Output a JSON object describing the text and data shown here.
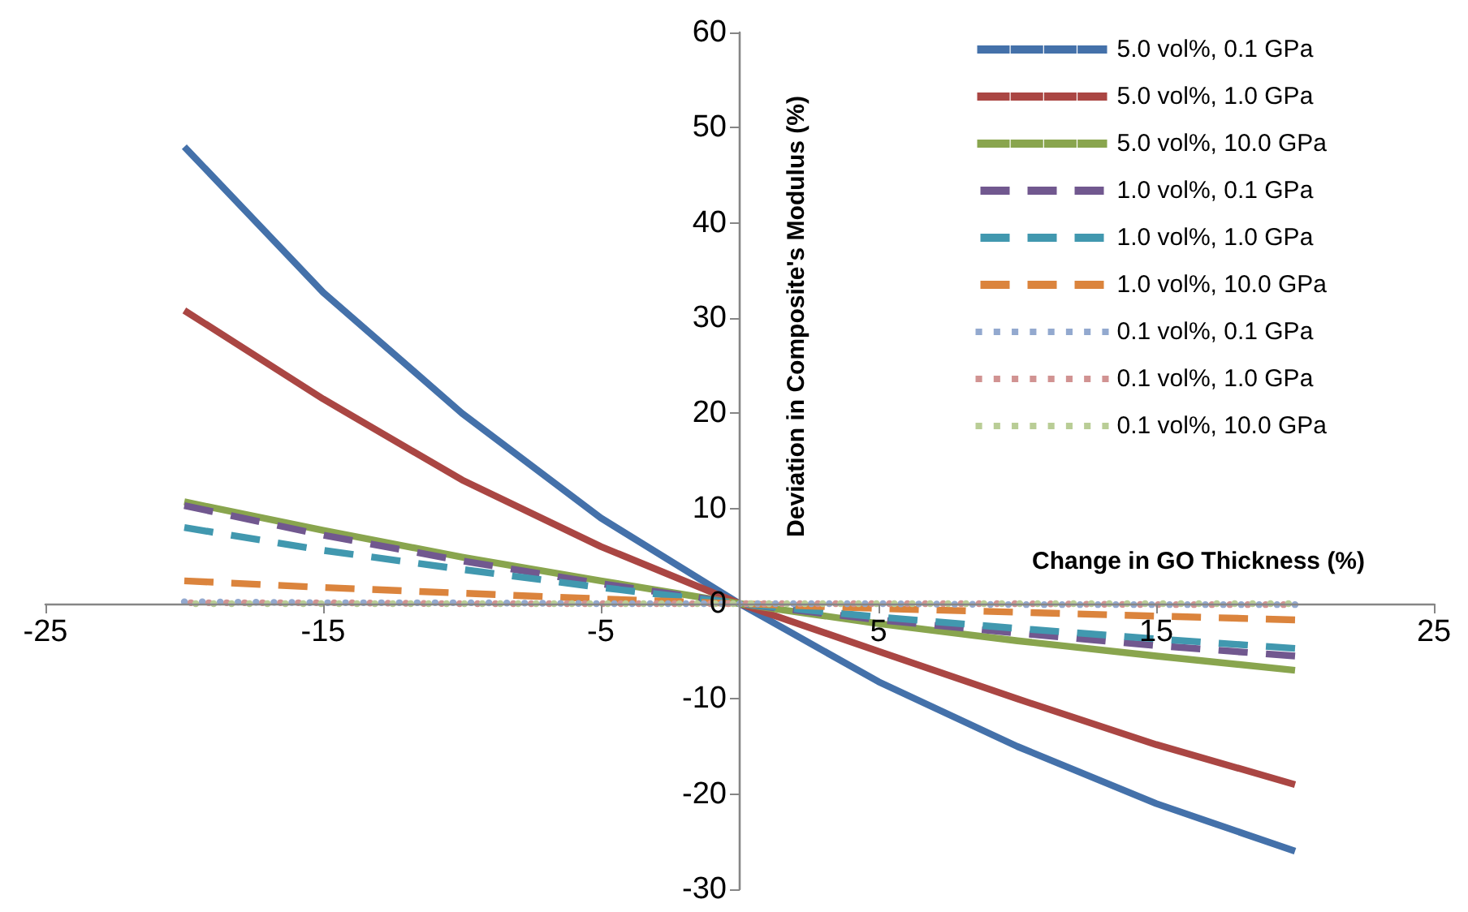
{
  "chart_data": {
    "type": "line",
    "xlabel": "Change in GO Thickness (%)",
    "ylabel": "Deviation in Composite's Modulus (%)",
    "x": [
      -20,
      -15,
      -10,
      -5,
      0,
      5,
      10,
      15,
      20
    ],
    "xlim": [
      -25,
      25
    ],
    "xticks": [
      -25,
      -15,
      -5,
      5,
      15,
      25
    ],
    "ylim": [
      -30,
      60
    ],
    "yticks": [
      -30,
      -20,
      -10,
      0,
      10,
      20,
      30,
      40,
      50,
      60
    ],
    "legend": "top right",
    "marker": "none",
    "series": [
      {
        "name": "5.0 vol%, 0.1 GPa",
        "color": "#4471aa",
        "line_style": "solid",
        "values": [
          48,
          32.7,
          20,
          9,
          0,
          -8.2,
          -15,
          -21,
          -26
        ]
      },
      {
        "name": "5.0 vol%, 1.0 GPa",
        "color": "#aa4643",
        "line_style": "solid",
        "values": [
          30.8,
          21.5,
          13,
          6,
          0,
          -5,
          -10,
          -14.8,
          -19
        ]
      },
      {
        "name": "5.0 vol%, 10.0 GPa",
        "color": "#89a54e",
        "line_style": "solid",
        "values": [
          10.7,
          7.7,
          4.9,
          2.4,
          0,
          -2.1,
          -3.9,
          -5.5,
          -7
        ]
      },
      {
        "name": "1.0 vol%, 0.1 GPa",
        "color": "#71588f",
        "line_style": "dashed",
        "values": [
          10.3,
          7.2,
          4.5,
          2.1,
          0,
          -1.7,
          -3.1,
          -4.4,
          -5.5
        ]
      },
      {
        "name": "1.0 vol%, 1.0 GPa",
        "color": "#4198af",
        "line_style": "dashed",
        "values": [
          8,
          5.6,
          3.6,
          1.7,
          0,
          -1.4,
          -2.6,
          -3.7,
          -4.7
        ]
      },
      {
        "name": "1.0 vol%, 10.0 GPa",
        "color": "#db843d",
        "line_style": "dashed",
        "values": [
          2.4,
          1.7,
          1.1,
          0.5,
          0,
          -0.5,
          -0.9,
          -1.3,
          -1.7
        ]
      },
      {
        "name": "0.1 vol%, 0.1 GPa",
        "color": "#93a9cf",
        "line_style": "dotted",
        "values": [
          0.2,
          0.1,
          0.1,
          0,
          0,
          0,
          -0.1,
          -0.1,
          -0.1
        ]
      },
      {
        "name": "0.1 vol%, 1.0 GPa",
        "color": "#d19392",
        "line_style": "dotted",
        "values": [
          0.1,
          0.1,
          0,
          0,
          0,
          0,
          0,
          -0.1,
          -0.1
        ]
      },
      {
        "name": "0.1 vol%, 10.0 GPa",
        "color": "#b9cd96",
        "line_style": "dotted",
        "values": [
          0,
          0,
          0,
          0,
          0,
          0,
          0,
          0,
          0
        ]
      }
    ]
  }
}
